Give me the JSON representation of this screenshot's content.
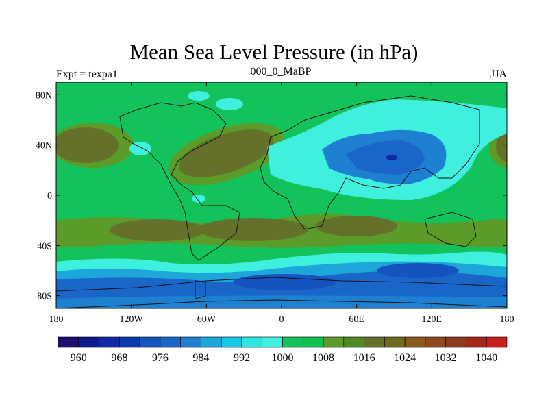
{
  "title": "Mean Sea Level Pressure (in hPa)",
  "left_label": "Expt = texpa1",
  "center_label": "000_0_MaBP",
  "right_label": "JJA",
  "map": {
    "projection": "cylindrical-equidistant",
    "lon_range": [
      -180,
      180
    ],
    "lat_range": [
      -90,
      90
    ],
    "x_ticks": [
      "180",
      "120W",
      "60W",
      "0",
      "60E",
      "120E",
      "180"
    ],
    "y_ticks": [
      "80N",
      "40N",
      "0",
      "40S",
      "80S"
    ],
    "background_value_hPa": 1010,
    "coastlines": true
  },
  "colorbar": {
    "levels": [
      956,
      960,
      964,
      968,
      972,
      976,
      980,
      984,
      988,
      992,
      996,
      1000,
      1004,
      1008,
      1012,
      1016,
      1020,
      1024,
      1028,
      1032,
      1036,
      1040,
      1044
    ],
    "colors": [
      "#1e0f6e",
      "#0e1a8f",
      "#0f2aa4",
      "#0b3cae",
      "#1554bf",
      "#1a66c8",
      "#1d80d0",
      "#1ca6da",
      "#17c8e6",
      "#2ae7e0",
      "#40f0df",
      "#13c25a",
      "#12c04f",
      "#5a9b29",
      "#4f8a22",
      "#63712a",
      "#6f6a1d",
      "#8b5a1f",
      "#8e4a1e",
      "#8e3a1d",
      "#a5261a",
      "#c81f1f"
    ],
    "labels": [
      "960",
      "968",
      "976",
      "984",
      "992",
      "1000",
      "1008",
      "1016",
      "1024",
      "1032",
      "1040"
    ]
  }
}
